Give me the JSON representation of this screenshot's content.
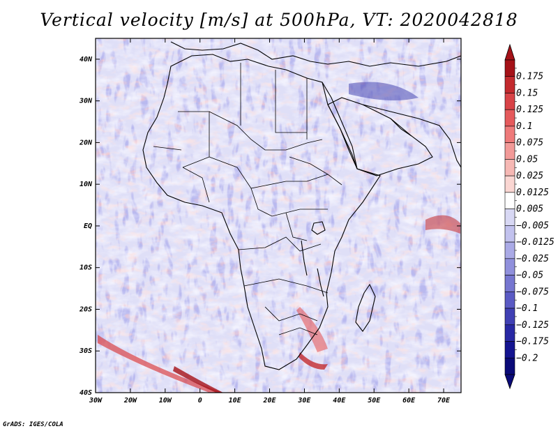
{
  "title": "Vertical velocity [m/s] at 500hPa, VT: 2020042818",
  "credit": "GrADS: IGES/COLA",
  "chart_data": {
    "type": "heatmap",
    "variable": "Vertical velocity",
    "units": "m/s",
    "level": "500hPa",
    "valid_time": "2020042818",
    "x_range_deg": [
      -30,
      75
    ],
    "y_range_deg": [
      -40,
      45
    ],
    "x_ticks": [
      {
        "value": -30,
        "label": "30W"
      },
      {
        "value": -20,
        "label": "20W"
      },
      {
        "value": -10,
        "label": "10W"
      },
      {
        "value": 0,
        "label": "0"
      },
      {
        "value": 10,
        "label": "10E"
      },
      {
        "value": 20,
        "label": "20E"
      },
      {
        "value": 30,
        "label": "30E"
      },
      {
        "value": 40,
        "label": "40E"
      },
      {
        "value": 50,
        "label": "50E"
      },
      {
        "value": 60,
        "label": "60E"
      },
      {
        "value": 70,
        "label": "70E"
      }
    ],
    "y_ticks": [
      {
        "value": 40,
        "label": "40N"
      },
      {
        "value": 30,
        "label": "30N"
      },
      {
        "value": 20,
        "label": "20N"
      },
      {
        "value": 10,
        "label": "10N"
      },
      {
        "value": 0,
        "label": "EQ"
      },
      {
        "value": -10,
        "label": "10S"
      },
      {
        "value": -20,
        "label": "20S"
      },
      {
        "value": -30,
        "label": "30S"
      },
      {
        "value": -40,
        "label": "40S"
      }
    ],
    "colorbar_levels": [
      "0.175",
      "0.15",
      "0.125",
      "0.1",
      "0.075",
      "0.05",
      "0.025",
      "0.0125",
      "0.005",
      "−0.005",
      "−0.0125",
      "−0.025",
      "−0.05",
      "−0.075",
      "−0.1",
      "−0.125",
      "−0.175",
      "−0.2"
    ],
    "colorbar_colors": [
      "#a51218",
      "#c32a2e",
      "#d84347",
      "#e55a5c",
      "#ee7a7a",
      "#f29a98",
      "#f6b8b4",
      "#fad6d2",
      "#ffffff",
      "#d8d8f4",
      "#c2c2ee",
      "#aaaae6",
      "#9090dc",
      "#7676d0",
      "#5a5ac4",
      "#4040b4",
      "#2828a4",
      "#141490",
      "#0a0a78"
    ]
  }
}
